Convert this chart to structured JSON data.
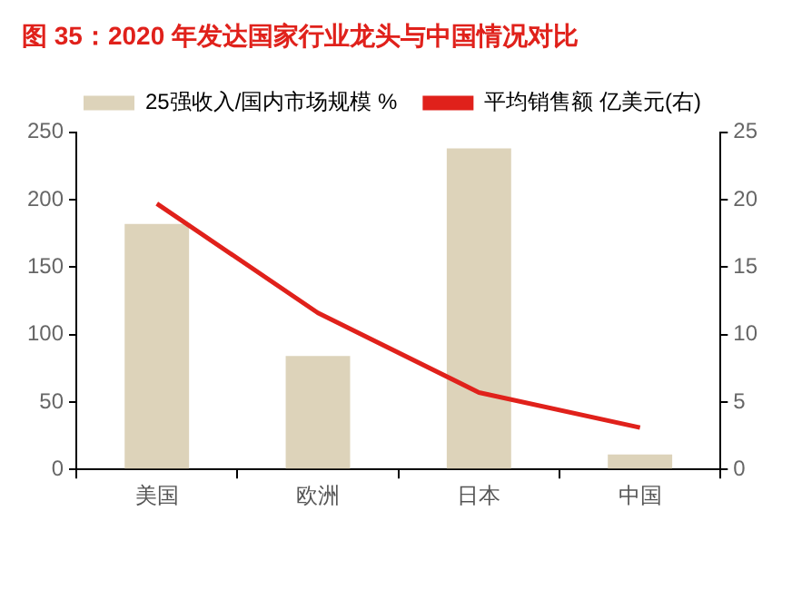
{
  "chart_data": {
    "type": "bar",
    "title": "图 35：2020 年发达国家行业龙头与中国情况对比",
    "categories": [
      "美国",
      "欧洲",
      "日本",
      "中国"
    ],
    "series": [
      {
        "name": "25强收入/国内市场规模 %",
        "color": "#ddd3ba",
        "values": [
          182,
          84,
          238,
          11
        ]
      },
      {
        "name": "平均销售额 亿美元(右)",
        "type": "line",
        "axis": "y2",
        "color": "#e0211b",
        "values": [
          19.7,
          11.6,
          5.7,
          3.1
        ]
      }
    ],
    "ylim": [
      0,
      250
    ],
    "yticks": [
      0,
      50,
      100,
      150,
      200,
      250
    ],
    "y2lim": [
      0,
      25
    ],
    "y2ticks": [
      0,
      5,
      10,
      15,
      20,
      25
    ],
    "grid": false,
    "legend": "top",
    "marker": "none"
  }
}
